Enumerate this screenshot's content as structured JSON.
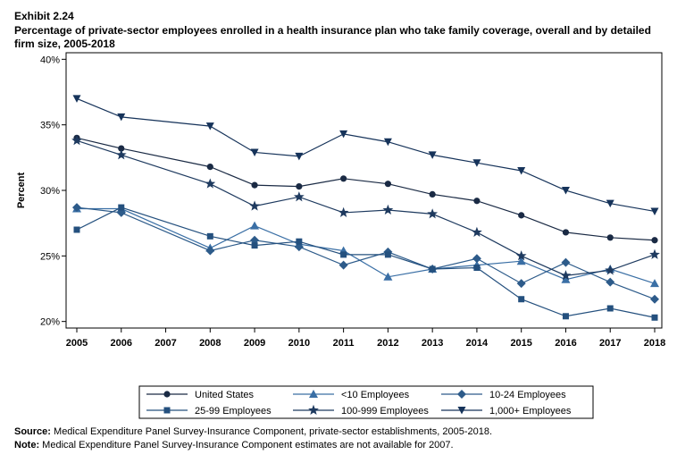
{
  "header": {
    "exhibit": "Exhibit 2.24",
    "title": "Percentage of private-sector employees enrolled in a health insurance plan who take family coverage, overall and by detailed firm size, 2005-2018"
  },
  "notes": {
    "source_label": "Source:",
    "source_text": " Medical Expenditure Panel Survey-Insurance Component, private-sector establishments, 2005-2018.",
    "note_label": "Note:",
    "note_text": " Medical Expenditure Panel Survey-Insurance Component estimates are not available for 2007."
  },
  "chart_data": {
    "type": "line",
    "ylabel": "Percent",
    "xlabel": "",
    "x": [
      2005,
      2006,
      2007,
      2008,
      2009,
      2010,
      2011,
      2012,
      2013,
      2014,
      2015,
      2016,
      2017,
      2018
    ],
    "x_tick_labels": [
      "2005",
      "2006",
      "2007",
      "2008",
      "2009",
      "2010",
      "2011",
      "2012",
      "2013",
      "2014",
      "2015",
      "2016",
      "2017",
      "2018"
    ],
    "ylim": [
      19.5,
      40.5
    ],
    "y_ticks": [
      20,
      25,
      30,
      35,
      40
    ],
    "y_tick_labels": [
      "20%",
      "25%",
      "30%",
      "35%",
      "40%"
    ],
    "grid": false,
    "legend_position": "bottom",
    "line_color": "#1f3e6e",
    "series": [
      {
        "name": "United States",
        "marker": "circle",
        "color": "#1a2a44",
        "values": [
          34.0,
          33.2,
          null,
          31.8,
          30.4,
          30.3,
          30.9,
          30.5,
          29.7,
          29.2,
          28.1,
          26.8,
          26.4,
          26.2
        ]
      },
      {
        "name": "<10 Employees",
        "marker": "triangle",
        "color": "#3a6fa5",
        "values": [
          28.6,
          28.6,
          null,
          25.6,
          27.3,
          25.9,
          25.4,
          23.4,
          24.0,
          24.3,
          24.6,
          23.2,
          24.0,
          22.9
        ]
      },
      {
        "name": "10-24 Employees",
        "marker": "diamond",
        "color": "#2d5b8a",
        "values": [
          28.7,
          28.3,
          null,
          25.4,
          26.2,
          25.7,
          24.3,
          25.3,
          24.0,
          24.8,
          22.9,
          24.5,
          23.0,
          21.7
        ]
      },
      {
        "name": "25-99 Employees",
        "marker": "square",
        "color": "#24507e",
        "values": [
          27.0,
          28.7,
          null,
          26.5,
          25.8,
          26.1,
          25.1,
          25.1,
          24.0,
          24.1,
          21.7,
          20.4,
          21.0,
          20.3
        ]
      },
      {
        "name": "100-999 Employees",
        "marker": "star",
        "color": "#1e3a5f",
        "values": [
          33.8,
          32.7,
          null,
          30.5,
          28.8,
          29.5,
          28.3,
          28.5,
          28.2,
          26.8,
          25.0,
          23.5,
          23.9,
          25.1
        ]
      },
      {
        "name": "1,000+ Employees",
        "marker": "triangle-down",
        "color": "#16335a",
        "values": [
          37.0,
          35.6,
          null,
          34.9,
          32.9,
          32.6,
          34.3,
          33.7,
          32.7,
          32.1,
          31.5,
          30.0,
          29.0,
          28.4
        ]
      }
    ]
  }
}
